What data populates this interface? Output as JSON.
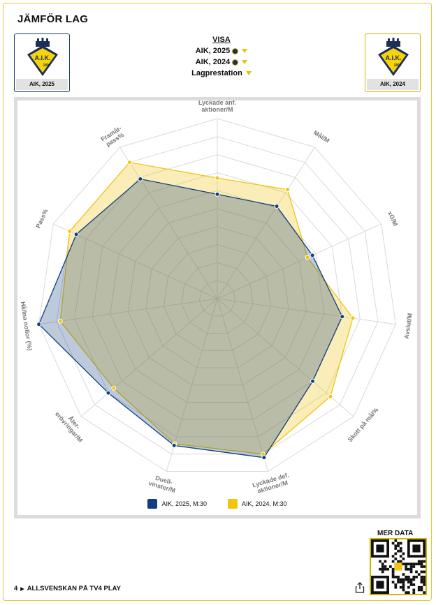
{
  "title": "JÄMFÖR LAG",
  "team_left": {
    "label": "AIK, 2025",
    "crest_text": "A.I.K.",
    "crest_year": "1891"
  },
  "team_right": {
    "label": "AIK, 2024",
    "crest_text": "A.I.K.",
    "crest_year": "1891"
  },
  "visa": {
    "heading": "VISA",
    "options": [
      "AIK, 2025",
      "AIK, 2024",
      "Lagprestation"
    ]
  },
  "colors": {
    "series_2025": "#0f3f7f",
    "series_2024": "#f1c40f",
    "accent": "#e8c437"
  },
  "chart_data": {
    "type": "radar",
    "axes": [
      "Lyckade anf. aktioner/M",
      "Mål/M",
      "xG/M",
      "Avslut/M",
      "Skott på mål%",
      "Lyckade def. aktioner/M",
      "Duell- vinster/M",
      "Åter- erövringar/M",
      "Hållna nollor (%)",
      "Pass%",
      "Framåt- pass%"
    ],
    "range": [
      0,
      1
    ],
    "grid_levels": 10,
    "series": [
      {
        "name": "AIK, 2025, M:30",
        "values": [
          0.58,
          0.61,
          0.58,
          0.7,
          0.7,
          0.92,
          0.85,
          0.8,
          1.0,
          0.86,
          0.79
        ]
      },
      {
        "name": "AIK, 2024, M:30",
        "values": [
          0.67,
          0.72,
          0.55,
          0.76,
          0.83,
          0.9,
          0.84,
          0.76,
          0.88,
          0.9,
          0.9
        ]
      }
    ]
  },
  "mer_data": "MER DATA",
  "footer": {
    "number": "4",
    "text": "ALLSVENSKAN PÅ TV4 PLAY"
  }
}
